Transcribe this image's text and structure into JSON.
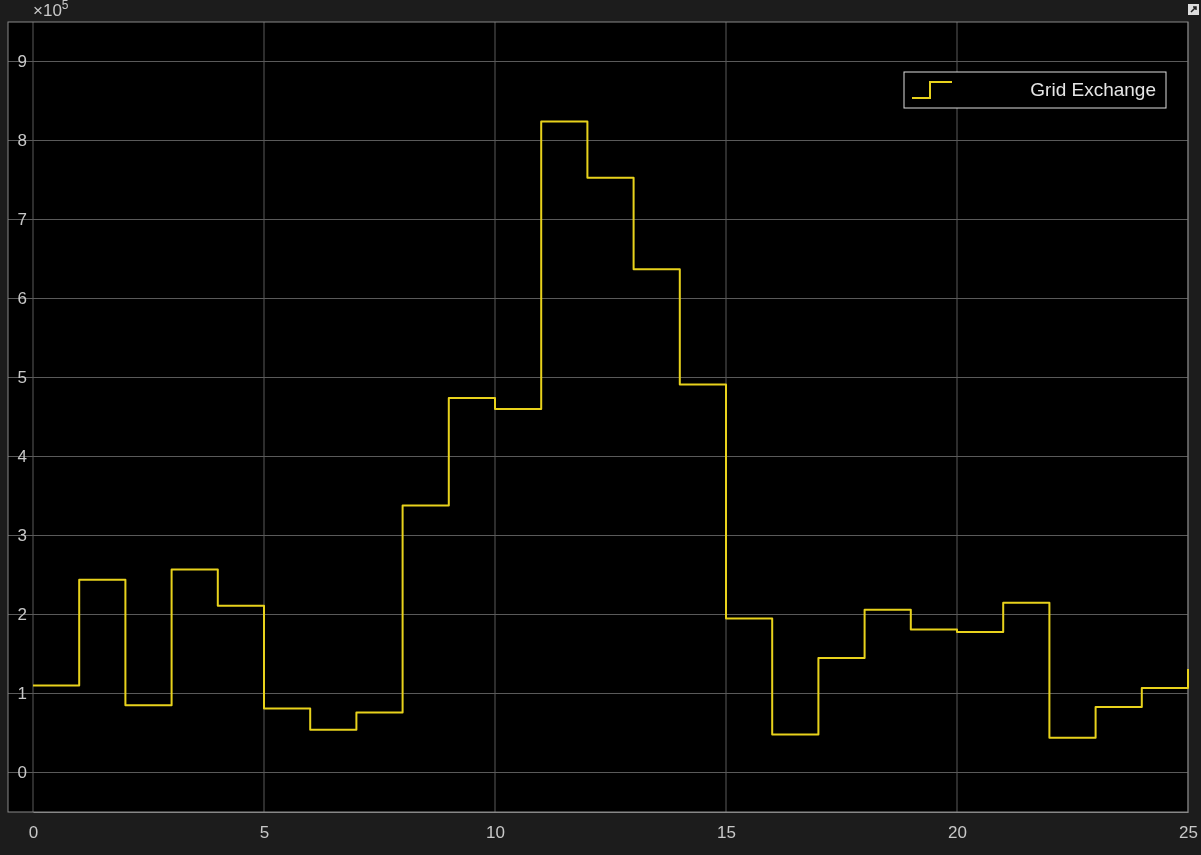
{
  "chart_data": {
    "type": "step",
    "x": [
      0,
      1,
      2,
      3,
      4,
      5,
      6,
      7,
      8,
      9,
      10,
      11,
      12,
      13,
      14,
      15,
      16,
      17,
      18,
      19,
      20,
      21,
      22,
      23,
      24,
      25
    ],
    "series": [
      {
        "name": "Grid Exchange",
        "color": "#e8d21c",
        "values": [
          1.1,
          2.44,
          0.85,
          2.57,
          2.11,
          0.81,
          0.54,
          0.76,
          3.38,
          4.74,
          4.6,
          8.24,
          7.53,
          6.37,
          4.91,
          1.95,
          0.48,
          1.45,
          2.06,
          1.81,
          1.78,
          2.15,
          0.44,
          0.83,
          1.07,
          1.31
        ]
      }
    ],
    "xlim": [
      0,
      25
    ],
    "ylim": [
      -0.5,
      9.5
    ],
    "xticks": [
      0,
      5,
      10,
      15,
      20,
      25
    ],
    "yticks": [
      0,
      1,
      2,
      3,
      4,
      5,
      6,
      7,
      8,
      9
    ],
    "annotations": [
      "×10$^{5}$"
    ],
    "grid": true,
    "legend": "top right"
  }
}
